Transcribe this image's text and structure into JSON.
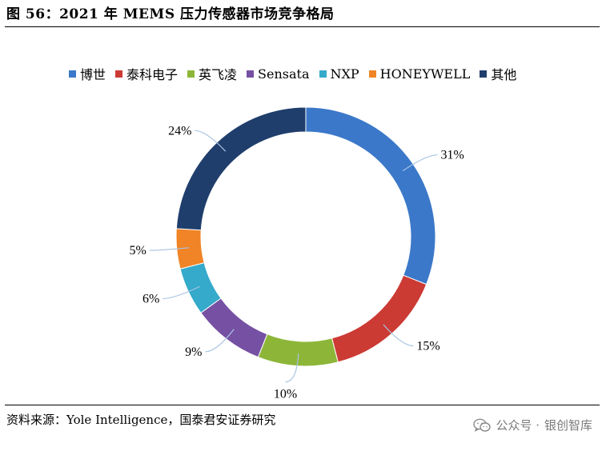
{
  "figure_title": "图 56：2021 年 MEMS 压力传感器市场竞争格局",
  "source": "资料来源：Yole Intelligence，国泰君安证券研究",
  "watermark": {
    "prefix": "公众号 ·",
    "name": "银创智库",
    "icon": "wechat-icon"
  },
  "colors": {
    "博世": "#3b78c9",
    "泰科电子": "#cc3a34",
    "英飞凌": "#8db639",
    "Sensata": "#7650a3",
    "NXP": "#35aacb",
    "HONEYWELL": "#f08426",
    "其他": "#1f3e6c"
  },
  "chart_data": {
    "type": "pie",
    "subtype": "donut",
    "title": "",
    "categories": [
      "博世",
      "泰科电子",
      "英飞凌",
      "Sensata",
      "NXP",
      "HONEYWELL",
      "其他"
    ],
    "values": [
      31,
      15,
      10,
      9,
      6,
      5,
      24
    ],
    "labels": [
      "31%",
      "15%",
      "10%",
      "9%",
      "6%",
      "5%",
      "24%"
    ],
    "unit": "%",
    "legend_position": "top"
  }
}
